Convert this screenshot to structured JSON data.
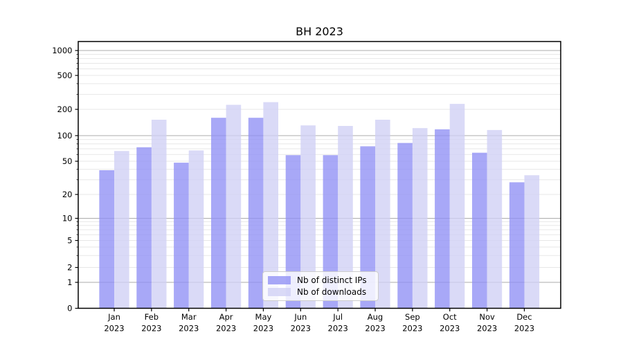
{
  "title": "BH 2023",
  "chart_data": {
    "type": "bar",
    "title": "BH 2023",
    "categories": [
      "Jan 2023",
      "Feb 2023",
      "Mar 2023",
      "Apr 2023",
      "May 2023",
      "Jun 2023",
      "Jul 2023",
      "Aug 2023",
      "Sep 2023",
      "Oct 2023",
      "Nov 2023",
      "Dec 2023"
    ],
    "series": [
      {
        "name": "Nb of distinct IPs",
        "color": "#8f8ff5",
        "values": [
          39,
          73,
          48,
          160,
          160,
          59,
          59,
          75,
          82,
          118,
          63,
          28
        ]
      },
      {
        "name": "Nb of downloads",
        "color": "#d0d0f5",
        "values": [
          66,
          152,
          67,
          226,
          243,
          131,
          129,
          152,
          122,
          232,
          116,
          34
        ]
      }
    ],
    "bar_opacity": 0.78,
    "yscale": "symlog",
    "ylim": [
      0,
      1000
    ],
    "yticks": [
      0,
      1,
      2,
      5,
      10,
      20,
      50,
      100,
      200,
      500,
      1000
    ],
    "grid": true,
    "legend_position": "lower center"
  },
  "colors": {
    "background": "#ffffff",
    "axis": "#000000",
    "grid_major": "#ababab",
    "grid_minor": "#e7e7e7",
    "text": "#000000",
    "legend_border": "#cccccc"
  }
}
